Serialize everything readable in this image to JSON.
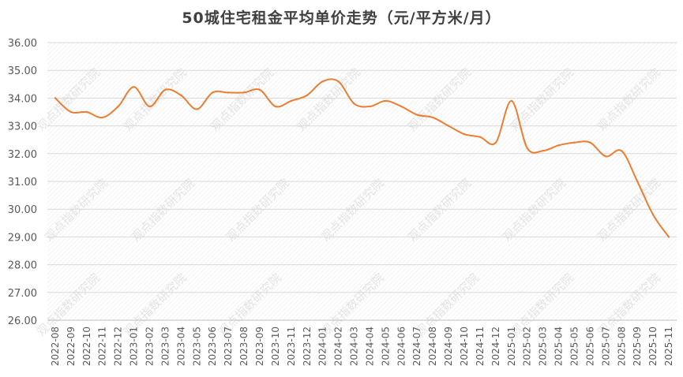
{
  "chart_data": {
    "type": "line",
    "title": "50城住宅租金平均单价走势（元/平方米/月）",
    "xlabel": "",
    "ylabel": "",
    "ylim": [
      26,
      36
    ],
    "yticks": [
      "26.00",
      "27.00",
      "28.00",
      "29.00",
      "30.00",
      "31.00",
      "32.00",
      "33.00",
      "34.00",
      "35.00",
      "36.00"
    ],
    "grid": true,
    "legend": "none",
    "categories": [
      "2022-08",
      "2022-09",
      "2022-10",
      "2022-11",
      "2022-12",
      "2023-01",
      "2023-02",
      "2023-03",
      "2023-04",
      "2023-05",
      "2023-06",
      "2023-07",
      "2023-08",
      "2023-09",
      "2023-10",
      "2023-11",
      "2023-12",
      "2024-01",
      "2024-02",
      "2024-03",
      "2024-04",
      "2024-05",
      "2024-06",
      "2024-07",
      "2024-08",
      "2024-09",
      "2024-10",
      "2024-11",
      "2024-12",
      "2025-01",
      "2025-02",
      "2025-03",
      "2025-04",
      "2025-05",
      "2025-06",
      "2025-07",
      "2025-08",
      "2025-09",
      "2025-10",
      "2025-11"
    ],
    "series": [
      {
        "values": [
          34.0,
          33.5,
          33.5,
          33.3,
          33.7,
          34.4,
          33.7,
          34.3,
          34.1,
          33.6,
          34.2,
          34.2,
          34.2,
          34.3,
          33.7,
          33.9,
          34.1,
          34.6,
          34.6,
          33.8,
          33.7,
          33.9,
          33.7,
          33.4,
          33.3,
          33.0,
          32.7,
          32.6,
          32.4,
          33.9,
          32.2,
          32.1,
          32.3,
          32.4,
          32.4,
          31.9,
          32.1,
          31.0,
          29.8,
          29.0
        ],
        "color": "#ED7D31"
      }
    ],
    "watermark": "观点指数研究院"
  }
}
